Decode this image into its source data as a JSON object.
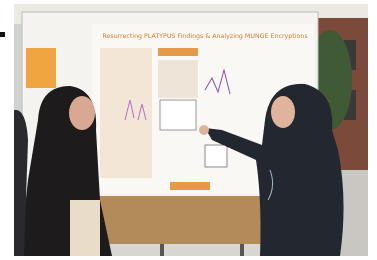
{
  "poster": {
    "title": "Resurrecting PLATYPUS Findings & Analyzing MUNGE Encryptions"
  }
}
